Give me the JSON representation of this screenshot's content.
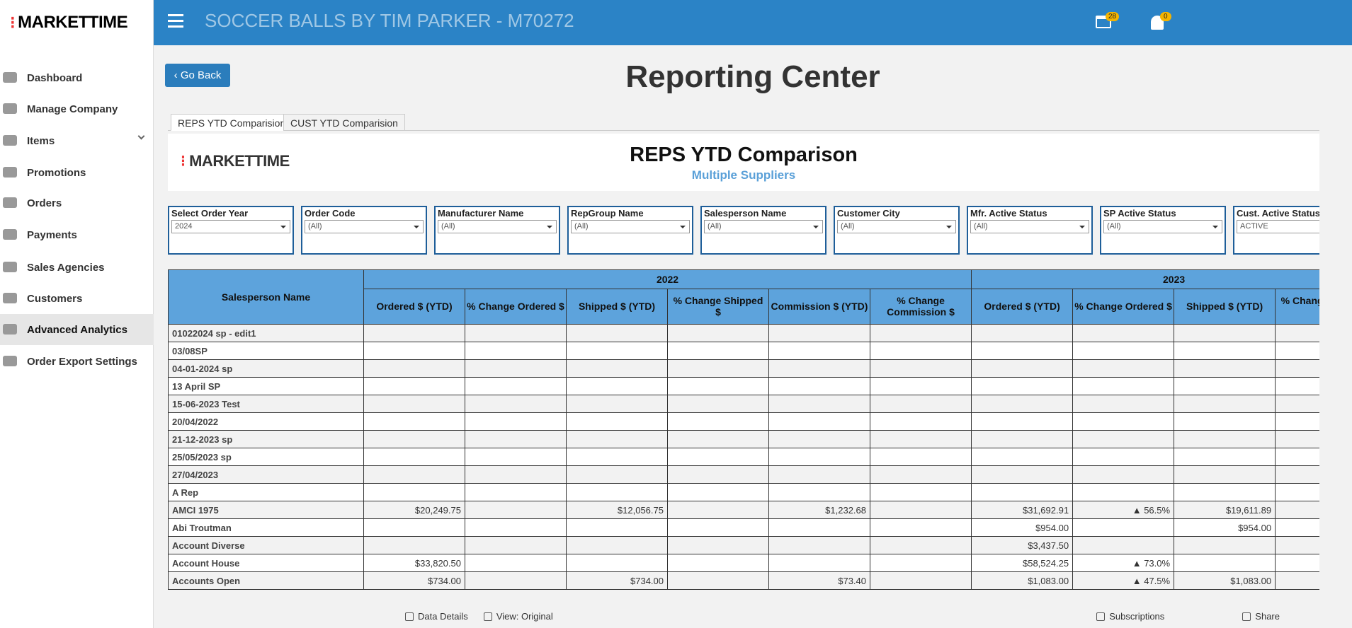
{
  "brand": "MARKETTIME",
  "header": {
    "title": "SOCCER BALLS BY TIM PARKER - M70272",
    "cart_count": "28",
    "notification_count": "0"
  },
  "nav": [
    "Dashboard",
    "Manage Company",
    "Items",
    "Promotions",
    "Orders",
    "Payments",
    "Sales Agencies",
    "Customers",
    "Advanced Analytics",
    "Order Export Settings"
  ],
  "go_back": "Go Back",
  "page_title": "Reporting Center",
  "tabs": [
    "REPS YTD Comparision",
    "CUST YTD Comparision"
  ],
  "report": {
    "logo": "MARKETTIME",
    "title": "REPS YTD Comparison",
    "subtitle": "Multiple Suppliers"
  },
  "filters": [
    {
      "label": "Select Order Year",
      "value": "2024"
    },
    {
      "label": "Order Code",
      "value": "(All)"
    },
    {
      "label": "Manufacturer Name",
      "value": "(All)"
    },
    {
      "label": "RepGroup Name",
      "value": "(All)"
    },
    {
      "label": "Salesperson Name",
      "value": "(All)"
    },
    {
      "label": "Customer City",
      "value": "(All)"
    },
    {
      "label": "Mfr. Active Status",
      "value": "(All)"
    },
    {
      "label": "SP Active Status",
      "value": "(All)"
    },
    {
      "label": "Cust. Active Status",
      "value": "ACTIVE"
    }
  ],
  "table": {
    "first_header": "Salesperson Name",
    "years": [
      {
        "label": "2022",
        "columns": [
          "Ordered $ (YTD)",
          "% Change Ordered $",
          "Shipped $ (YTD)",
          "% Change Shipped $",
          "Commission $ (YTD)",
          "% Change Commission $"
        ]
      },
      {
        "label": "2023",
        "columns": [
          "Ordered $ (YTD)",
          "% Change Ordered $",
          "Shipped $ (YTD)",
          "% Change Shipped $"
        ]
      }
    ],
    "rows": [
      [
        "01022024 sp - edit1",
        "",
        "",
        "",
        "",
        "",
        "",
        "",
        "",
        "",
        ""
      ],
      [
        "03/08SP",
        "",
        "",
        "",
        "",
        "",
        "",
        "",
        "",
        "",
        ""
      ],
      [
        "04-01-2024 sp",
        "",
        "",
        "",
        "",
        "",
        "",
        "",
        "",
        "",
        ""
      ],
      [
        "13 April SP",
        "",
        "",
        "",
        "",
        "",
        "",
        "",
        "",
        "",
        ""
      ],
      [
        "15-06-2023 Test",
        "",
        "",
        "",
        "",
        "",
        "",
        "",
        "",
        "",
        ""
      ],
      [
        "20/04/2022",
        "",
        "",
        "",
        "",
        "",
        "",
        "",
        "",
        "",
        ""
      ],
      [
        "21-12-2023 sp",
        "",
        "",
        "",
        "",
        "",
        "",
        "",
        "",
        "",
        ""
      ],
      [
        "25/05/2023 sp",
        "",
        "",
        "",
        "",
        "",
        "",
        "",
        "",
        "",
        ""
      ],
      [
        "27/04/2023",
        "",
        "",
        "",
        "",
        "",
        "",
        "",
        "",
        "",
        ""
      ],
      [
        "A Rep",
        "",
        "",
        "",
        "",
        "",
        "",
        "",
        "",
        "",
        ""
      ],
      [
        "AMCI 1975",
        "$20,249.75",
        "",
        "$12,056.75",
        "",
        "$1,232.68",
        "",
        "$31,692.91",
        "▲ 56.5%",
        "$19,611.89",
        ""
      ],
      [
        "Abi Troutman",
        "",
        "",
        "",
        "",
        "",
        "",
        "$954.00",
        "",
        "$954.00",
        ""
      ],
      [
        "Account Diverse",
        "",
        "",
        "",
        "",
        "",
        "",
        "$3,437.50",
        "",
        "",
        ""
      ],
      [
        "Account House",
        "$33,820.50",
        "",
        "",
        "",
        "",
        "",
        "$58,524.25",
        "▲ 73.0%",
        "",
        ""
      ],
      [
        "Accounts Open",
        "$734.00",
        "",
        "$734.00",
        "",
        "$73.40",
        "",
        "$1,083.00",
        "▲ 47.5%",
        "$1,083.00",
        ""
      ]
    ]
  },
  "toolbar": [
    "Data Details",
    "View: Original",
    "Subscriptions",
    "Share"
  ]
}
